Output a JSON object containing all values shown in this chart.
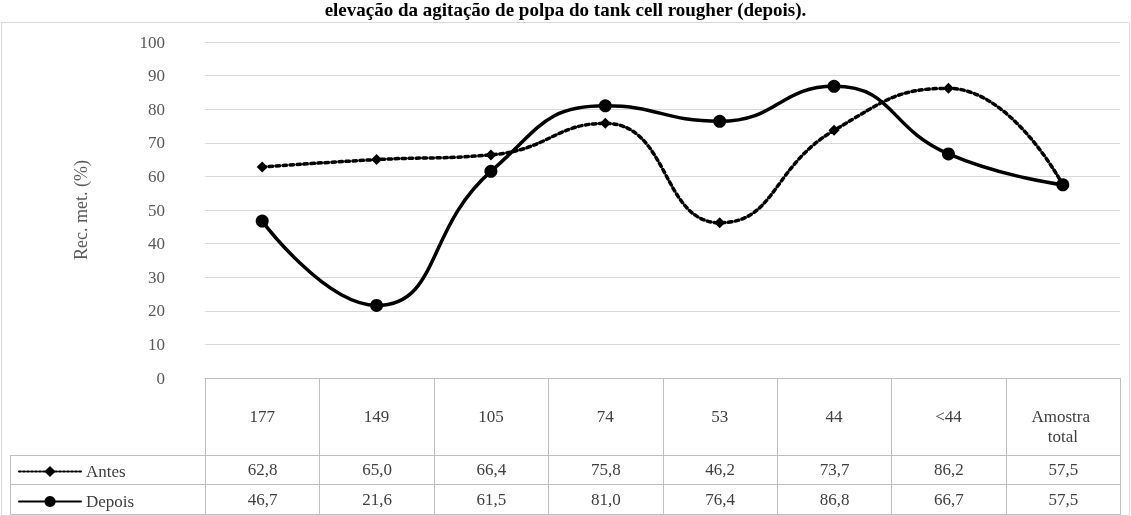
{
  "chart_data": {
    "type": "line",
    "title": "elevação da agitação de polpa do tank cell rougher (depois).",
    "ylabel": "Rec. met. (%)",
    "categories": [
      "177",
      "149",
      "105",
      "74",
      "53",
      "44",
      "<44",
      "Amostra total"
    ],
    "series": [
      {
        "name": "Antes",
        "color": "#000000",
        "marker": "diamond",
        "line_style": "dotted",
        "values": [
          62.8,
          65.0,
          66.4,
          75.8,
          46.2,
          73.7,
          86.2,
          57.5
        ],
        "value_labels": [
          "62,8",
          "65,0",
          "66,4",
          "75,8",
          "46,2",
          "73,7",
          "86,2",
          "57,5"
        ]
      },
      {
        "name": "Depois",
        "color": "#000000",
        "marker": "circle",
        "line_style": "solid",
        "values": [
          46.7,
          21.6,
          61.5,
          81.0,
          76.4,
          86.8,
          66.7,
          57.5
        ],
        "value_labels": [
          "46,7",
          "21,6",
          "61,5",
          "81,0",
          "76,4",
          "86,8",
          "66,7",
          "57,5"
        ]
      }
    ],
    "ylim": [
      0,
      100
    ],
    "yticks": [
      0,
      10,
      20,
      30,
      40,
      50,
      60,
      70,
      80,
      90,
      100
    ],
    "grid": "y",
    "legend": "bottom left",
    "data_labels": true
  }
}
